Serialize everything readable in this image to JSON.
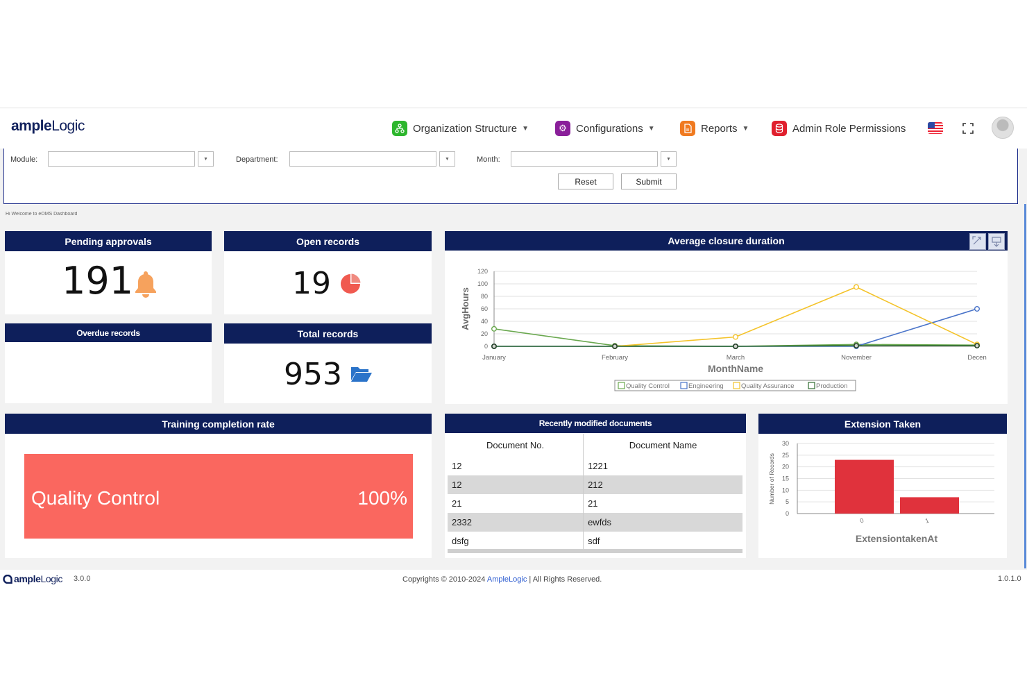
{
  "header": {
    "logo_bold": "ample",
    "logo_light": "Logic",
    "nav": [
      {
        "label": "Organization Structure",
        "color": "#2db62d"
      },
      {
        "label": "Configurations",
        "color": "#8a1f9a"
      },
      {
        "label": "Reports",
        "color": "#f07a20"
      },
      {
        "label": "Admin Role Permissions",
        "color": "#e0202e"
      }
    ]
  },
  "filter": {
    "module_label": "Module:",
    "department_label": "Department:",
    "month_label": "Month:",
    "reset_label": "Reset",
    "submit_label": "Submit",
    "welcome_text": "Hi Welcome to eQMS Dashboard"
  },
  "cards": {
    "pending": {
      "title": "Pending approvals",
      "value": "191"
    },
    "open": {
      "title": "Open records",
      "value": "19"
    },
    "overdue": {
      "title": "Overdue records"
    },
    "total": {
      "title": "Total records",
      "value": "953"
    },
    "training": {
      "title": "Training completion rate",
      "bar_label": "Quality Control",
      "bar_value": "100%",
      "bar_fraction": 1.0
    },
    "recent": {
      "title": "Recently modified documents",
      "columns": [
        "Document No.",
        "Document Name"
      ],
      "rows": [
        [
          "12",
          "1221"
        ],
        [
          "12",
          "212"
        ],
        [
          "21",
          "21"
        ],
        [
          "2332",
          "ewfds"
        ],
        [
          "dsfg",
          "sdf"
        ]
      ]
    }
  },
  "chart_data": [
    {
      "type": "line",
      "title": "Average closure duration",
      "xlabel": "MonthName",
      "ylabel": "AvgHours",
      "categories": [
        "January",
        "February",
        "March",
        "November",
        "December"
      ],
      "category_labels": [
        "January",
        "February",
        "March",
        "November",
        "Decen"
      ],
      "ylim": [
        0,
        120
      ],
      "yticks": [
        0,
        20,
        40,
        60,
        80,
        100,
        120
      ],
      "grid": true,
      "legend": "bottom",
      "series": [
        {
          "name": "Quality Control",
          "color": "#6aa84f",
          "values": [
            28,
            1,
            0,
            3,
            2
          ]
        },
        {
          "name": "Engineering",
          "color": "#4a74c9",
          "values": [
            0,
            0,
            0,
            0,
            60
          ]
        },
        {
          "name": "Quality Assurance",
          "color": "#f4c32a",
          "values": [
            null,
            0,
            15,
            95,
            3
          ]
        },
        {
          "name": "Production",
          "color": "#2e6b2e",
          "values": [
            0,
            0,
            0,
            1,
            1
          ]
        }
      ]
    },
    {
      "type": "bar",
      "title": "Extension Taken",
      "xlabel": "ExtensiontakenAt",
      "ylabel": "Number of Records",
      "categories": [
        "0",
        "1"
      ],
      "values": [
        23,
        7
      ],
      "ylim": [
        0,
        30
      ],
      "yticks": [
        0,
        5,
        10,
        15,
        20,
        25,
        30
      ],
      "color": "#e0323c"
    }
  ],
  "footer": {
    "logo_bold": "ample",
    "logo_light": "Logic",
    "version": "3.0.0",
    "copyright_prefix": "Copyrights © 2010-2024 ",
    "copyright_link": "AmpleLogic",
    "copyright_suffix": " | All Rights Reserved.",
    "build": "1.0.1.0"
  }
}
